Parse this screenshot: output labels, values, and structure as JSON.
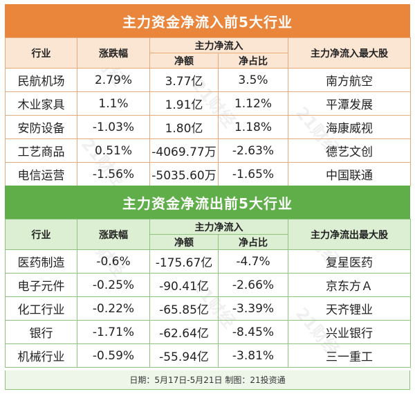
{
  "inflow": {
    "title": "主力资金净流入前5大行业",
    "headers": {
      "industry": "行业",
      "change": "涨跌幅",
      "net_flow": "主力净流入",
      "net_amount": "净额",
      "net_ratio": "净占比",
      "top_stock": "主力净流入最大股"
    },
    "rows": [
      {
        "industry": "民航机场",
        "change": "2.79%",
        "amount": "3.77亿",
        "ratio": "3.5%",
        "stock": "南方航空"
      },
      {
        "industry": "木业家具",
        "change": "1.1%",
        "amount": "1.91亿",
        "ratio": "1.12%",
        "stock": "平潭发展"
      },
      {
        "industry": "安防设备",
        "change": "-1.03%",
        "amount": "1.80亿",
        "ratio": "1.18%",
        "stock": "海康威视"
      },
      {
        "industry": "工艺商品",
        "change": "0.51%",
        "amount": "-4069.77万",
        "ratio": "-2.63%",
        "stock": "德艺文创"
      },
      {
        "industry": "电信运营",
        "change": "-1.56%",
        "amount": "-5035.60万",
        "ratio": "-1.65%",
        "stock": "中国联通"
      }
    ]
  },
  "outflow": {
    "title": "主力资金净流出前5大行业",
    "headers": {
      "industry": "行业",
      "change": "涨跌幅",
      "net_flow": "主力净流入",
      "net_amount": "净额",
      "net_ratio": "净占比",
      "top_stock": "主力净流出最大股"
    },
    "rows": [
      {
        "industry": "医药制造",
        "change": "-0.6%",
        "amount": "-175.67亿",
        "ratio": "-4.7%",
        "stock": "复星医药"
      },
      {
        "industry": "电子元件",
        "change": "-0.25%",
        "amount": "-90.41亿",
        "ratio": "-2.66%",
        "stock": "京东方Ａ"
      },
      {
        "industry": "化工行业",
        "change": "-0.22%",
        "amount": "-65.85亿",
        "ratio": "-3.39%",
        "stock": "天齐锂业"
      },
      {
        "industry": "银行",
        "change": "-1.71%",
        "amount": "-62.64亿",
        "ratio": "-8.45%",
        "stock": "兴业银行"
      },
      {
        "industry": "机械行业",
        "change": "-0.59%",
        "amount": "-55.94亿",
        "ratio": "-3.81%",
        "stock": "三一重工"
      }
    ]
  },
  "footer": "日期：5月17日-5月21日 制图：21投资通",
  "watermark": "21财经",
  "colors": {
    "inflow_title": "#e9863c",
    "inflow_header": "#fbe5d3",
    "outflow_title": "#5fae49",
    "outflow_header": "#dcefd3"
  }
}
